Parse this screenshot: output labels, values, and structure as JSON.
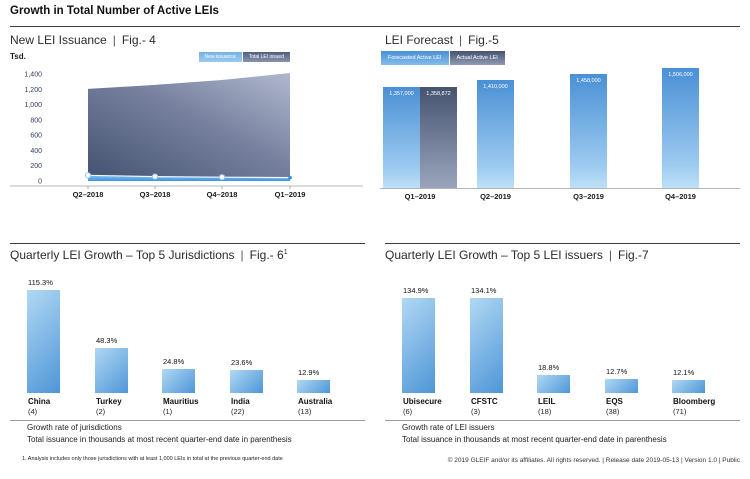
{
  "page": {
    "title": "Growth in Total Number of Active LEIs",
    "separator": "|",
    "footnote": "1. Analysis includes only those jurisdictions with at least 1,000 LEIs in total at the previous quarter-end date",
    "footer": "© 2019 GLEIF and/or its affiliates. All rights reserved.  |  Release date 2019-05-13  |  Version 1.0  |  Public"
  },
  "colors": {
    "accent_light_blue": "#4e96d7",
    "accent_dark_slate": "#46536f",
    "axis_text": "#2e3d5e"
  },
  "chart_data": [
    {
      "id": "fig4",
      "type": "area",
      "title": "New LEI Issuance",
      "figure_label": "Fig.- 4",
      "y_unit_label": "Tsd.",
      "x": [
        "Q2–2018",
        "Q3–2018",
        "Q4–2018",
        "Q1–2019"
      ],
      "series": [
        {
          "name": "New issuance",
          "values_thousands": [
            74,
            58,
            50,
            44
          ]
        },
        {
          "name": "Total LEI issued",
          "values_thousands": [
            1205,
            1258,
            1322,
            1413
          ]
        }
      ],
      "ylim": [
        0,
        1400
      ],
      "yticks": [
        1400,
        1200,
        1000,
        800,
        600,
        400,
        200,
        0
      ],
      "ytick_labels": [
        "1,400",
        "1,200",
        "1,000",
        "800",
        "600",
        "400",
        "200",
        "0"
      ],
      "legend_position": "top-right",
      "grid": false
    },
    {
      "id": "fig5",
      "type": "bar",
      "title": "LEI Forecast",
      "figure_label": "Fig.-5",
      "categories": [
        "Q1–2019",
        "Q2–2019",
        "Q3–2019",
        "Q4–2019"
      ],
      "series": [
        {
          "name": "Forecasted Active LEI",
          "values": [
            1357000,
            1410000,
            1458000,
            1506000
          ],
          "data_labels": [
            "1,357,000",
            "1,410,000",
            "1,458,000",
            "1,506,000"
          ]
        },
        {
          "name": "Actual Active LEI",
          "values": [
            1358872,
            null,
            null,
            null
          ],
          "data_labels": [
            "1,358,872",
            null,
            null,
            null
          ]
        }
      ],
      "legend_position": "top-left",
      "grid": false
    },
    {
      "id": "fig6",
      "type": "bar",
      "title": "Quarterly LEI Growth – Top 5 Jurisdictions",
      "figure_label": "Fig.- 6",
      "footnote_ref": "1",
      "categories": [
        "China",
        "Turkey",
        "Mauritius",
        "India",
        "Australia"
      ],
      "category_counts": [
        "(4)",
        "(2)",
        "(1)",
        "(22)",
        "(13)"
      ],
      "values_percent": [
        115.3,
        48.3,
        24.8,
        23.6,
        12.9
      ],
      "data_labels": [
        "115.3%",
        "48.3%",
        "24.8%",
        "23.6%",
        "12.9%"
      ],
      "caption_line1": "Growth rate of jurisdictions",
      "caption_line2": "Total issuance in thousands at most recent quarter-end date in parenthesis"
    },
    {
      "id": "fig7",
      "type": "bar",
      "title": "Quarterly LEI Growth – Top 5 LEI issuers",
      "figure_label": "Fig.-7",
      "categories": [
        "Ubisecure",
        "CFSTC",
        "LEIL",
        "EQS",
        "Bloomberg"
      ],
      "category_counts": [
        "(6)",
        "(3)",
        "(18)",
        "(38)",
        "(71)"
      ],
      "values_percent": [
        134.9,
        134.1,
        18.8,
        12.7,
        12.1
      ],
      "data_labels": [
        "134.9%",
        "134.1%",
        "18.8%",
        "12.7%",
        "12.1%"
      ],
      "caption_line1": "Growth rate of LEI issuers",
      "caption_line2": "Total issuance in thousands at most recent quarter-end date in parenthesis"
    }
  ]
}
